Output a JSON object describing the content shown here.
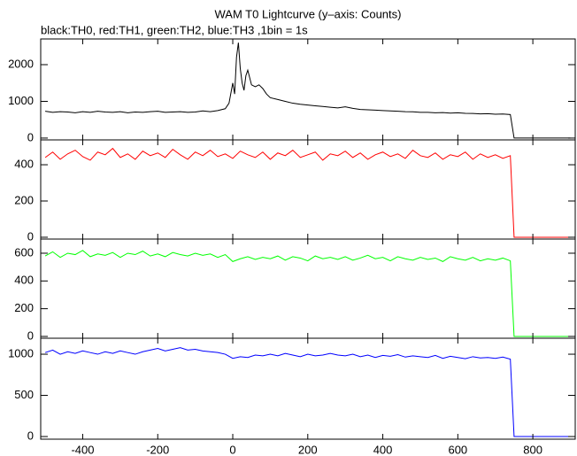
{
  "chart_data": [
    {
      "type": "line",
      "title": "WAM T0 Lightcurve (y–axis: Counts)",
      "subtitle": "black:TH0, red:TH1, green:TH2, blue:TH3 ,1bin = 1s",
      "color": "#000000",
      "xlim": [
        -512,
        913
      ],
      "xticks": [
        -400,
        -200,
        0,
        200,
        400,
        600,
        800
      ],
      "ylim": [
        -50,
        2700
      ],
      "yticks": [
        0,
        1000,
        2000
      ],
      "x": [
        -500,
        -480,
        -460,
        -440,
        -420,
        -400,
        -380,
        -360,
        -340,
        -320,
        -300,
        -280,
        -260,
        -240,
        -220,
        -200,
        -180,
        -160,
        -140,
        -120,
        -100,
        -80,
        -60,
        -40,
        -20,
        -10,
        0,
        5,
        10,
        15,
        20,
        25,
        30,
        35,
        40,
        50,
        60,
        70,
        80,
        90,
        100,
        120,
        140,
        160,
        180,
        200,
        220,
        240,
        260,
        280,
        300,
        320,
        340,
        360,
        380,
        400,
        420,
        440,
        460,
        480,
        500,
        520,
        540,
        560,
        580,
        600,
        620,
        640,
        660,
        680,
        700,
        720,
        740,
        750,
        760,
        780,
        800,
        820,
        840,
        860,
        880,
        900
      ],
      "values": [
        730,
        700,
        720,
        710,
        690,
        720,
        700,
        730,
        710,
        700,
        720,
        690,
        710,
        700,
        720,
        730,
        700,
        710,
        720,
        700,
        710,
        740,
        720,
        750,
        800,
        950,
        1500,
        1200,
        2200,
        2600,
        1900,
        1500,
        1300,
        1700,
        1850,
        1450,
        1400,
        1450,
        1350,
        1200,
        1100,
        1050,
        1000,
        950,
        920,
        900,
        880,
        860,
        840,
        820,
        850,
        810,
        780,
        770,
        760,
        750,
        740,
        730,
        720,
        715,
        700,
        700,
        690,
        695,
        680,
        690,
        675,
        670,
        660,
        665,
        650,
        655,
        640,
        0,
        0,
        0,
        0,
        0,
        0,
        0,
        0,
        0
      ]
    },
    {
      "type": "line",
      "color": "#ff0000",
      "xlim": [
        -512,
        913
      ],
      "xticks": [
        -400,
        -200,
        0,
        200,
        400,
        600,
        800
      ],
      "ylim": [
        -10,
        537
      ],
      "yticks": [
        0,
        200,
        400
      ],
      "x": [
        -500,
        -480,
        -460,
        -440,
        -420,
        -400,
        -380,
        -360,
        -340,
        -320,
        -300,
        -280,
        -260,
        -240,
        -220,
        -200,
        -180,
        -160,
        -140,
        -120,
        -100,
        -80,
        -60,
        -40,
        -20,
        0,
        20,
        40,
        60,
        80,
        100,
        120,
        140,
        160,
        180,
        200,
        220,
        240,
        260,
        280,
        300,
        320,
        340,
        360,
        380,
        400,
        420,
        440,
        460,
        480,
        500,
        520,
        540,
        560,
        580,
        600,
        620,
        640,
        660,
        680,
        700,
        720,
        740,
        750,
        760,
        780,
        800,
        820,
        840,
        860,
        880,
        900
      ],
      "values": [
        440,
        470,
        430,
        460,
        480,
        445,
        425,
        470,
        455,
        490,
        440,
        460,
        430,
        475,
        450,
        465,
        440,
        485,
        455,
        430,
        470,
        450,
        480,
        445,
        460,
        435,
        475,
        455,
        440,
        470,
        430,
        465,
        450,
        480,
        440,
        455,
        470,
        425,
        460,
        450,
        475,
        440,
        465,
        430,
        455,
        470,
        445,
        460,
        435,
        480,
        450,
        440,
        465,
        430,
        455,
        445,
        470,
        430,
        460,
        440,
        455,
        435,
        450,
        0,
        0,
        0,
        0,
        0,
        0,
        0,
        0,
        0
      ]
    },
    {
      "type": "line",
      "color": "#00ff00",
      "xlim": [
        -512,
        913
      ],
      "xticks": [
        -400,
        -200,
        0,
        200,
        400,
        600,
        800
      ],
      "ylim": [
        -13,
        702
      ],
      "yticks": [
        0,
        200,
        400,
        600
      ],
      "x": [
        -500,
        -480,
        -460,
        -440,
        -420,
        -400,
        -380,
        -360,
        -340,
        -320,
        -300,
        -280,
        -260,
        -240,
        -220,
        -200,
        -180,
        -160,
        -140,
        -120,
        -100,
        -80,
        -60,
        -40,
        -20,
        0,
        20,
        40,
        60,
        80,
        100,
        120,
        140,
        160,
        180,
        200,
        220,
        240,
        260,
        280,
        300,
        320,
        340,
        360,
        380,
        400,
        420,
        440,
        460,
        480,
        500,
        520,
        540,
        560,
        580,
        600,
        620,
        640,
        660,
        680,
        700,
        720,
        740,
        750,
        760,
        780,
        800,
        820,
        840,
        860,
        880,
        900
      ],
      "values": [
        580,
        610,
        570,
        600,
        590,
        620,
        575,
        595,
        585,
        605,
        570,
        600,
        590,
        615,
        580,
        595,
        575,
        605,
        590,
        580,
        600,
        585,
        595,
        570,
        590,
        540,
        560,
        575,
        555,
        570,
        560,
        580,
        550,
        575,
        565,
        545,
        580,
        560,
        570,
        555,
        575,
        550,
        565,
        585,
        560,
        570,
        545,
        575,
        560,
        550,
        570,
        555,
        565,
        540,
        575,
        560,
        550,
        570,
        545,
        560,
        550,
        565,
        545,
        0,
        0,
        0,
        0,
        0,
        0,
        0,
        0,
        0
      ]
    },
    {
      "type": "line",
      "color": "#0000ff",
      "xlim": [
        -512,
        913
      ],
      "xticks": [
        -400,
        -200,
        0,
        200,
        400,
        600,
        800
      ],
      "ylim": [
        -32,
        1194
      ],
      "yticks": [
        0,
        500,
        1000
      ],
      "x": [
        -500,
        -480,
        -460,
        -440,
        -420,
        -400,
        -380,
        -360,
        -340,
        -320,
        -300,
        -280,
        -260,
        -240,
        -220,
        -200,
        -180,
        -160,
        -140,
        -120,
        -100,
        -80,
        -60,
        -40,
        -20,
        0,
        20,
        40,
        60,
        80,
        100,
        120,
        140,
        160,
        180,
        200,
        220,
        240,
        260,
        280,
        300,
        320,
        340,
        360,
        380,
        400,
        420,
        440,
        460,
        480,
        500,
        520,
        540,
        560,
        580,
        600,
        620,
        640,
        660,
        680,
        700,
        720,
        740,
        750,
        760,
        780,
        800,
        820,
        840,
        860,
        880,
        900
      ],
      "values": [
        1020,
        1050,
        1000,
        1030,
        1010,
        1040,
        1020,
        1000,
        1030,
        1010,
        1040,
        1020,
        1000,
        1030,
        1050,
        1070,
        1040,
        1060,
        1080,
        1050,
        1060,
        1040,
        1030,
        1020,
        1000,
        950,
        970,
        960,
        990,
        980,
        1000,
        980,
        1010,
        990,
        970,
        1000,
        980,
        990,
        1010,
        990,
        980,
        1000,
        970,
        990,
        960,
        985,
        975,
        995,
        965,
        980,
        970,
        960,
        985,
        950,
        975,
        960,
        945,
        970,
        955,
        960,
        950,
        965,
        940,
        0,
        0,
        0,
        0,
        0,
        0,
        0,
        0,
        0
      ]
    }
  ]
}
